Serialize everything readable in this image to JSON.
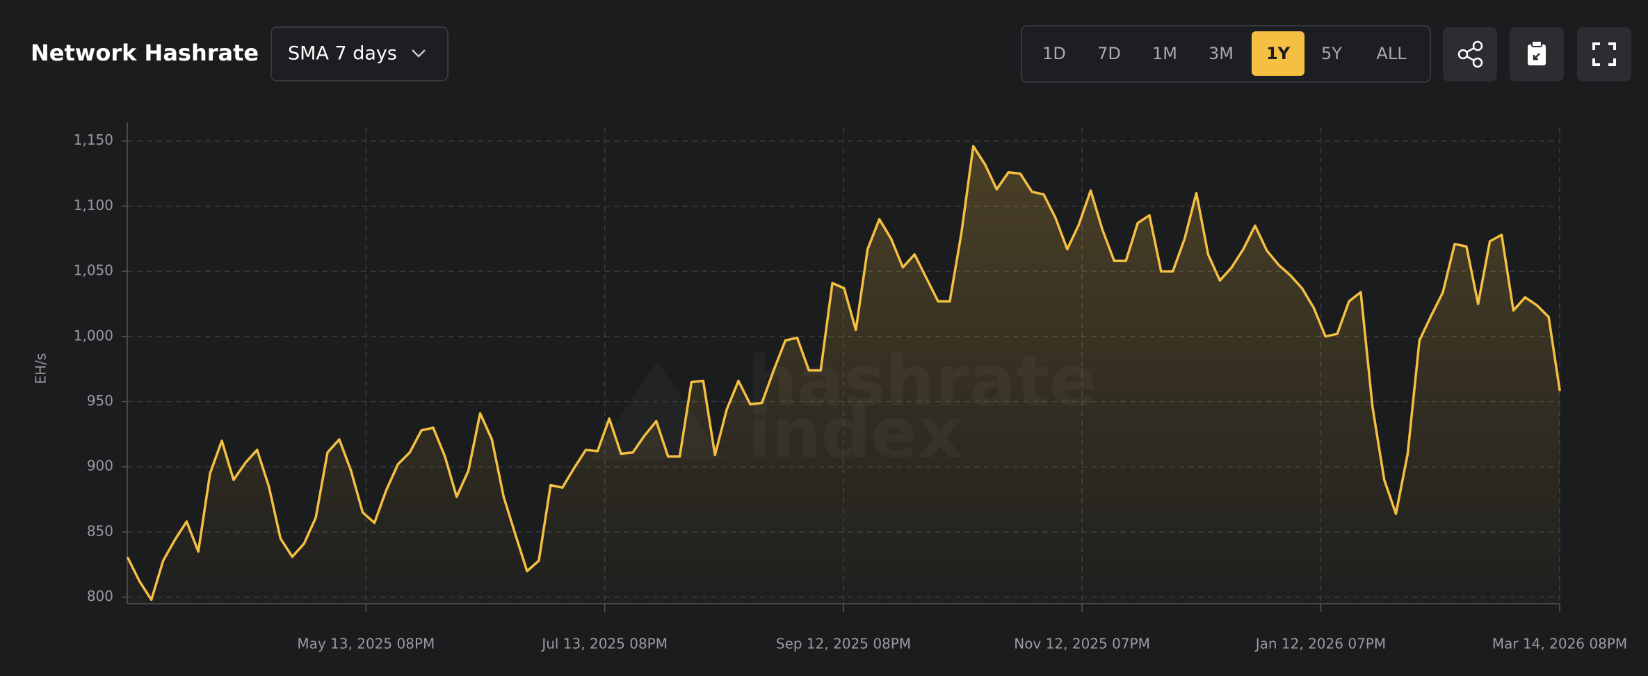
{
  "header": {
    "title": "Network Hashrate",
    "dropdown": "SMA 7 days",
    "ranges": [
      "1D",
      "7D",
      "1M",
      "3M",
      "1Y",
      "5Y",
      "ALL"
    ],
    "active_range": "1Y"
  },
  "chart_data": {
    "type": "line",
    "y_label": "EH/s",
    "watermark": [
      "hashrate",
      "index"
    ],
    "color": "#f5c042",
    "grid": true,
    "x": [
      "2025-03-14",
      "2025-03-17",
      "2025-03-20",
      "2025-03-23",
      "2025-03-26",
      "2025-03-29",
      "2025-04-01",
      "2025-04-04",
      "2025-04-07",
      "2025-04-10",
      "2025-04-13",
      "2025-04-16",
      "2025-04-19",
      "2025-04-22",
      "2025-04-25",
      "2025-04-28",
      "2025-05-01",
      "2025-05-04",
      "2025-05-07",
      "2025-05-10",
      "2025-05-13",
      "2025-05-16",
      "2025-05-19",
      "2025-05-22",
      "2025-05-25",
      "2025-05-28",
      "2025-05-31",
      "2025-06-03",
      "2025-06-06",
      "2025-06-09",
      "2025-06-12",
      "2025-06-15",
      "2025-06-18",
      "2025-06-21",
      "2025-06-24",
      "2025-06-27",
      "2025-06-30",
      "2025-07-03",
      "2025-07-06",
      "2025-07-09",
      "2025-07-12",
      "2025-07-15",
      "2025-07-18",
      "2025-07-21",
      "2025-07-24",
      "2025-07-27",
      "2025-07-30",
      "2025-08-02",
      "2025-08-05",
      "2025-08-08",
      "2025-08-11",
      "2025-08-14",
      "2025-08-17",
      "2025-08-20",
      "2025-08-23",
      "2025-08-26",
      "2025-08-29",
      "2025-09-01",
      "2025-09-04",
      "2025-09-07",
      "2025-09-10",
      "2025-09-13",
      "2025-09-16",
      "2025-09-19",
      "2025-09-22",
      "2025-09-25",
      "2025-09-28",
      "2025-10-01",
      "2025-10-04",
      "2025-10-07",
      "2025-10-10",
      "2025-10-13",
      "2025-10-16",
      "2025-10-19",
      "2025-10-22",
      "2025-10-25",
      "2025-10-28",
      "2025-10-31",
      "2025-11-03",
      "2025-11-06",
      "2025-11-09",
      "2025-11-12",
      "2025-11-15",
      "2025-11-18",
      "2025-11-21",
      "2025-11-24",
      "2025-11-27",
      "2025-11-30",
      "2025-12-03",
      "2025-12-06",
      "2025-12-09",
      "2025-12-12",
      "2025-12-15",
      "2025-12-18",
      "2025-12-21",
      "2025-12-24",
      "2025-12-27",
      "2025-12-30",
      "2026-01-02",
      "2026-01-05",
      "2026-01-08",
      "2026-01-11",
      "2026-01-14",
      "2026-01-17",
      "2026-01-20",
      "2026-01-23",
      "2026-01-26",
      "2026-01-29",
      "2026-02-01",
      "2026-02-04",
      "2026-02-07",
      "2026-02-10",
      "2026-02-13",
      "2026-02-16",
      "2026-02-19",
      "2026-02-22",
      "2026-02-25",
      "2026-02-28",
      "2026-03-03",
      "2026-03-06",
      "2026-03-09",
      "2026-03-12",
      "2026-03-14T20:00"
    ],
    "values": [
      830,
      812,
      798,
      828,
      844,
      858,
      835,
      895,
      920,
      890,
      903,
      913,
      885,
      845,
      831,
      841,
      861,
      911,
      921,
      897,
      865,
      857,
      882,
      902,
      911,
      928,
      930,
      908,
      877,
      897,
      941,
      921,
      877,
      848,
      820,
      828,
      886,
      884,
      899,
      913,
      912,
      937,
      910,
      911,
      924,
      935,
      908,
      908,
      965,
      966,
      909,
      944,
      966,
      948,
      949,
      974,
      997,
      999,
      974,
      974,
      1041,
      1037,
      1005,
      1067,
      1090,
      1075,
      1053,
      1063,
      1045,
      1027,
      1027,
      1080,
      1146,
      1132,
      1113,
      1126,
      1125,
      1111,
      1109,
      1091,
      1067,
      1086,
      1112,
      1082,
      1058,
      1058,
      1087,
      1093,
      1050,
      1050,
      1075,
      1110,
      1063,
      1043,
      1053,
      1067,
      1085,
      1066,
      1055,
      1047,
      1037,
      1022,
      1000,
      1002,
      1027,
      1034,
      946,
      890,
      864,
      910,
      997,
      1016,
      1034,
      1071,
      1069,
      1025,
      1073,
      1078,
      1020,
      1030,
      1024,
      1015,
      959
    ],
    "xlim": [
      "2025-03-13T20:00",
      "2026-03-14T20:00"
    ],
    "xticks": [
      {
        "value": "2025-05-13T20:00",
        "label": "May 13, 2025 08PM"
      },
      {
        "value": "2025-07-13T20:00",
        "label": "Jul 13, 2025 08PM"
      },
      {
        "value": "2025-09-12T20:00",
        "label": "Sep 12, 2025 08PM"
      },
      {
        "value": "2025-11-12T19:00",
        "label": "Nov 12, 2025 07PM"
      },
      {
        "value": "2026-01-12T19:00",
        "label": "Jan 12, 2026 07PM"
      },
      {
        "value": "2026-03-14T20:00",
        "label": "Mar 14, 2026 08PM"
      }
    ],
    "ylim": [
      795,
      1160
    ],
    "yticks": [
      800,
      850,
      900,
      950,
      {
        "value": 1000,
        "label": "1,000"
      },
      {
        "value": 1050,
        "label": "1,050"
      },
      {
        "value": 1100,
        "label": "1,100"
      },
      {
        "value": 1150,
        "label": "1,150"
      }
    ]
  }
}
